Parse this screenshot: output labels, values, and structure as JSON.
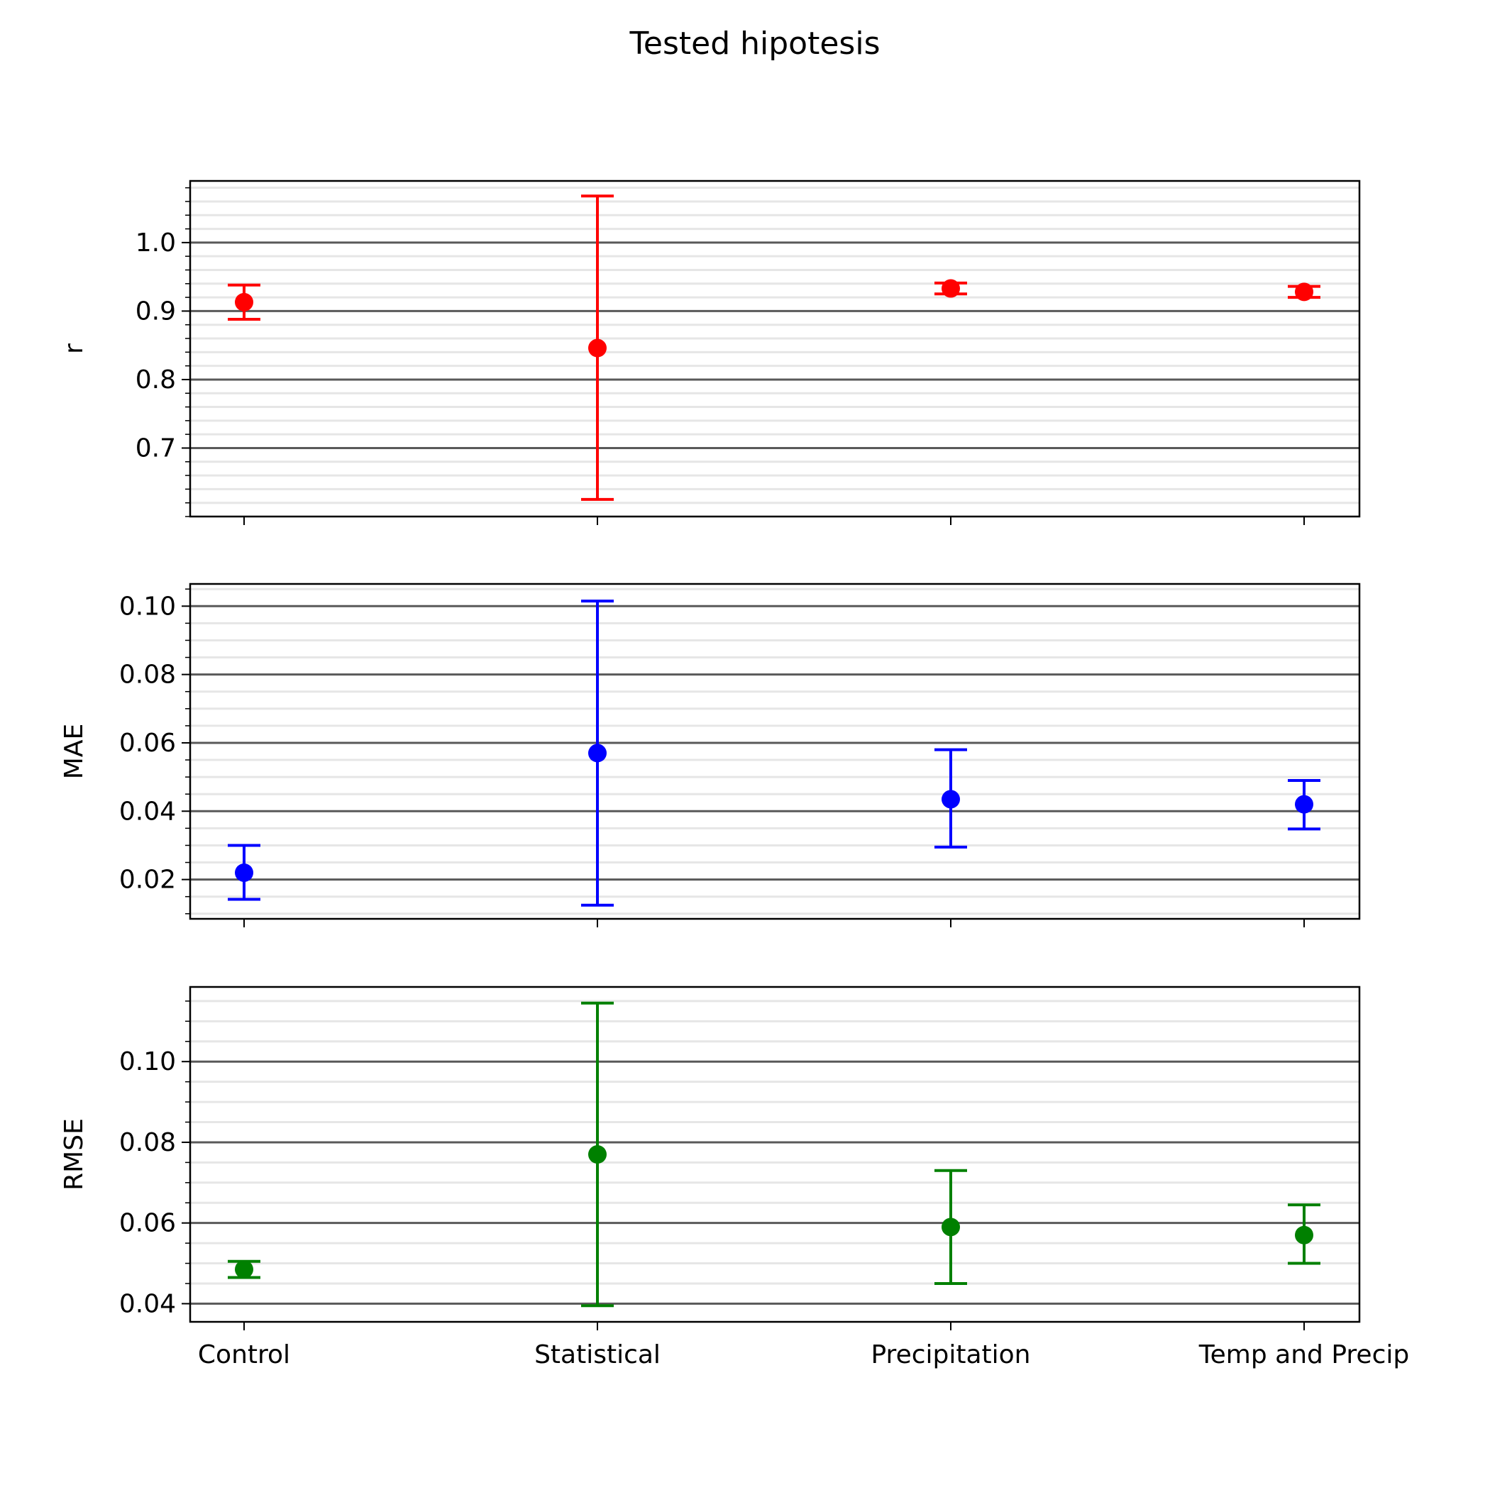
{
  "figure": {
    "title": "Tested hipotesis"
  },
  "chart_data": [
    {
      "type": "errorbar",
      "ylabel": "r",
      "color": "#ff0000",
      "categories": [
        "Control",
        "Statistical",
        "Precipitation",
        "Temp and Precip"
      ],
      "values": [
        0.913,
        0.846,
        0.933,
        0.928
      ],
      "lower": [
        0.888,
        0.625,
        0.925,
        0.92
      ],
      "upper": [
        0.938,
        1.068,
        0.941,
        0.936
      ],
      "ylim": [
        0.6,
        1.09
      ],
      "yticks": [
        0.7,
        0.8,
        0.9,
        1.0
      ],
      "ytick_labels": [
        "0.7",
        "0.8",
        "0.9",
        "1.0"
      ],
      "minor_step": 0.02,
      "grid": true,
      "show_xtick_labels": false
    },
    {
      "type": "errorbar",
      "ylabel": "MAE",
      "color": "#0000ff",
      "categories": [
        "Control",
        "Statistical",
        "Precipitation",
        "Temp and Precip"
      ],
      "values": [
        0.022,
        0.057,
        0.0435,
        0.042
      ],
      "lower": [
        0.0142,
        0.0125,
        0.0295,
        0.0348
      ],
      "upper": [
        0.03,
        0.1015,
        0.058,
        0.049
      ],
      "ylim": [
        0.0085,
        0.1065
      ],
      "yticks": [
        0.02,
        0.04,
        0.06,
        0.08,
        0.1
      ],
      "ytick_labels": [
        "0.02",
        "0.04",
        "0.06",
        "0.08",
        "0.10"
      ],
      "minor_step": 0.005,
      "grid": true,
      "show_xtick_labels": false
    },
    {
      "type": "errorbar",
      "ylabel": "RMSE",
      "color": "#008000",
      "categories": [
        "Control",
        "Statistical",
        "Precipitation",
        "Temp and Precip"
      ],
      "values": [
        0.0485,
        0.077,
        0.059,
        0.057
      ],
      "lower": [
        0.0465,
        0.0395,
        0.045,
        0.05
      ],
      "upper": [
        0.0505,
        0.1145,
        0.073,
        0.0645
      ],
      "ylim": [
        0.0355,
        0.1185
      ],
      "yticks": [
        0.04,
        0.06,
        0.08,
        0.1
      ],
      "ytick_labels": [
        "0.04",
        "0.06",
        "0.08",
        "0.10"
      ],
      "minor_step": 0.005,
      "grid": true,
      "show_xtick_labels": true
    }
  ]
}
